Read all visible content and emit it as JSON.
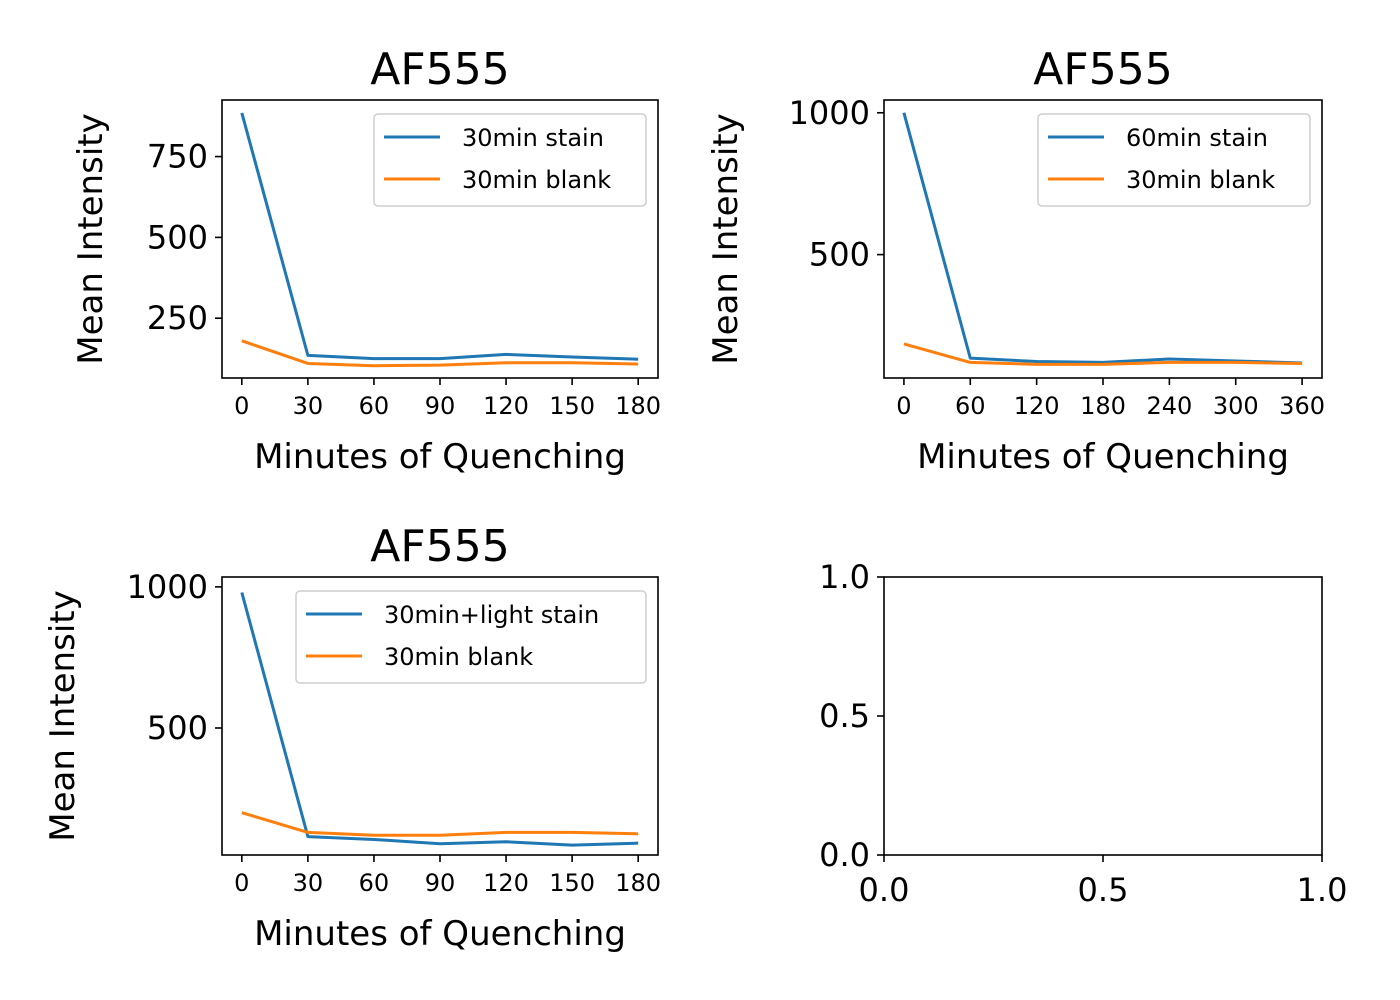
{
  "chart_data": [
    {
      "type": "line",
      "title": "AF555",
      "xlabel": "Minutes of Quenching",
      "ylabel": "Mean Intensity",
      "x": [
        0,
        30,
        60,
        90,
        120,
        150,
        180
      ],
      "xticks": [
        0,
        30,
        60,
        90,
        120,
        150,
        180
      ],
      "yticks": [
        250,
        500,
        750
      ],
      "xlim": [
        -9,
        189
      ],
      "ylim": [
        65,
        925
      ],
      "series": [
        {
          "name": "30min stain",
          "color": "#1f77b4",
          "values": [
            885,
            135,
            125,
            125,
            138,
            130,
            123
          ]
        },
        {
          "name": "30min blank",
          "color": "#ff7f0e",
          "values": [
            180,
            110,
            103,
            105,
            112,
            112,
            108
          ]
        }
      ],
      "legend": "top-right",
      "grid": false
    },
    {
      "type": "line",
      "title": "AF555",
      "xlabel": "Minutes of Quenching",
      "ylabel": "Mean Intensity",
      "x": [
        0,
        60,
        120,
        180,
        240,
        300,
        360
      ],
      "xticks": [
        0,
        60,
        120,
        180,
        240,
        300,
        360
      ],
      "yticks": [
        500,
        1000
      ],
      "xlim": [
        -18,
        378
      ],
      "ylim": [
        65,
        1045
      ],
      "series": [
        {
          "name": "60min stain",
          "color": "#1f77b4",
          "values": [
            1000,
            135,
            123,
            120,
            132,
            125,
            118
          ]
        },
        {
          "name": "30min blank",
          "color": "#ff7f0e",
          "values": [
            185,
            120,
            113,
            113,
            120,
            120,
            116
          ]
        }
      ],
      "legend": "top-right",
      "grid": false
    },
    {
      "type": "line",
      "title": "AF555",
      "xlabel": "Minutes of Quenching",
      "ylabel": "Mean Intensity",
      "x": [
        0,
        30,
        60,
        90,
        120,
        150,
        180
      ],
      "xticks": [
        0,
        30,
        60,
        90,
        120,
        150,
        180
      ],
      "yticks": [
        500,
        1000
      ],
      "xlim": [
        -9,
        189
      ],
      "ylim": [
        50,
        1035
      ],
      "series": [
        {
          "name": "30min+light stain",
          "color": "#1f77b4",
          "values": [
            980,
            115,
            105,
            90,
            97,
            85,
            92
          ]
        },
        {
          "name": "30min blank",
          "color": "#ff7f0e",
          "values": [
            200,
            130,
            120,
            120,
            130,
            130,
            125
          ]
        }
      ],
      "legend": "top-right",
      "grid": false
    },
    {
      "type": "line",
      "title": "",
      "xlabel": "",
      "ylabel": "",
      "xticks": [
        0.0,
        0.5,
        1.0
      ],
      "yticks": [
        0.0,
        0.5,
        1.0
      ],
      "xtick_labels": [
        "0.0",
        "0.5",
        "1.0"
      ],
      "ytick_labels": [
        "0.0",
        "0.5",
        "1.0"
      ],
      "xlim": [
        0,
        1
      ],
      "ylim": [
        0,
        1
      ],
      "series": [],
      "grid": false
    }
  ]
}
